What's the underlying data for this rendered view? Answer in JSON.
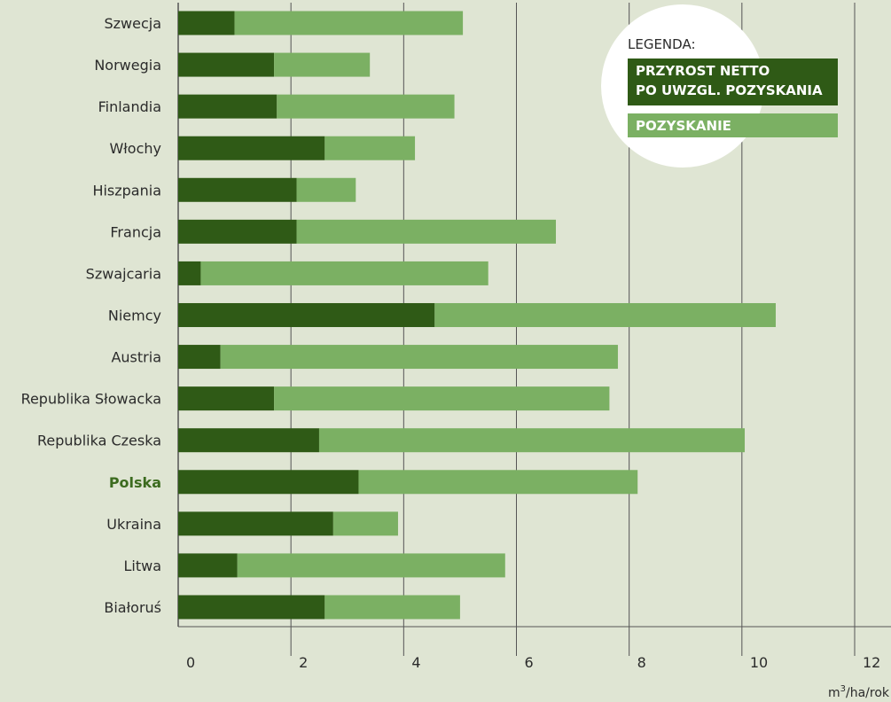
{
  "chart_data": {
    "type": "bar",
    "orientation": "horizontal",
    "stacked": true,
    "categories": [
      "Szwecja",
      "Norwegia",
      "Finlandia",
      "Włochy",
      "Hiszpania",
      "Francja",
      "Szwajcaria",
      "Niemcy",
      "Austria",
      "Republika Słowacka",
      "Republika Czeska",
      "Polska",
      "Ukraina",
      "Litwa",
      "Białoruś"
    ],
    "highlight_category": "Polska",
    "series": [
      {
        "name": "PRZYROST NETTO PO UWZGL. POZYSKANIA",
        "name_lines": [
          "PRZYROST NETTO",
          "PO UWZGL. POZYSKANIA"
        ],
        "color": "#2f5a16",
        "values": [
          1.0,
          1.7,
          1.75,
          2.6,
          2.1,
          2.1,
          0.4,
          4.55,
          0.75,
          1.7,
          2.5,
          3.2,
          2.75,
          1.05,
          2.6
        ]
      },
      {
        "name": "POZYSKANIE",
        "name_lines": [
          "POZYSKANIE"
        ],
        "color": "#7bb063",
        "values": [
          4.05,
          1.7,
          3.15,
          1.6,
          1.05,
          4.6,
          5.1,
          6.05,
          7.05,
          5.95,
          7.55,
          4.95,
          1.15,
          4.75,
          2.4
        ]
      }
    ],
    "xticks": [
      "0",
      "2",
      "4",
      "6",
      "8",
      "10",
      "12"
    ],
    "xlim": [
      0,
      12
    ],
    "xlabel_base": "m",
    "xlabel_sup": "3",
    "xlabel_rest": "/ha/rok",
    "legend_title": "LEGENDA:",
    "legend_position": "top-right",
    "grid": true
  }
}
